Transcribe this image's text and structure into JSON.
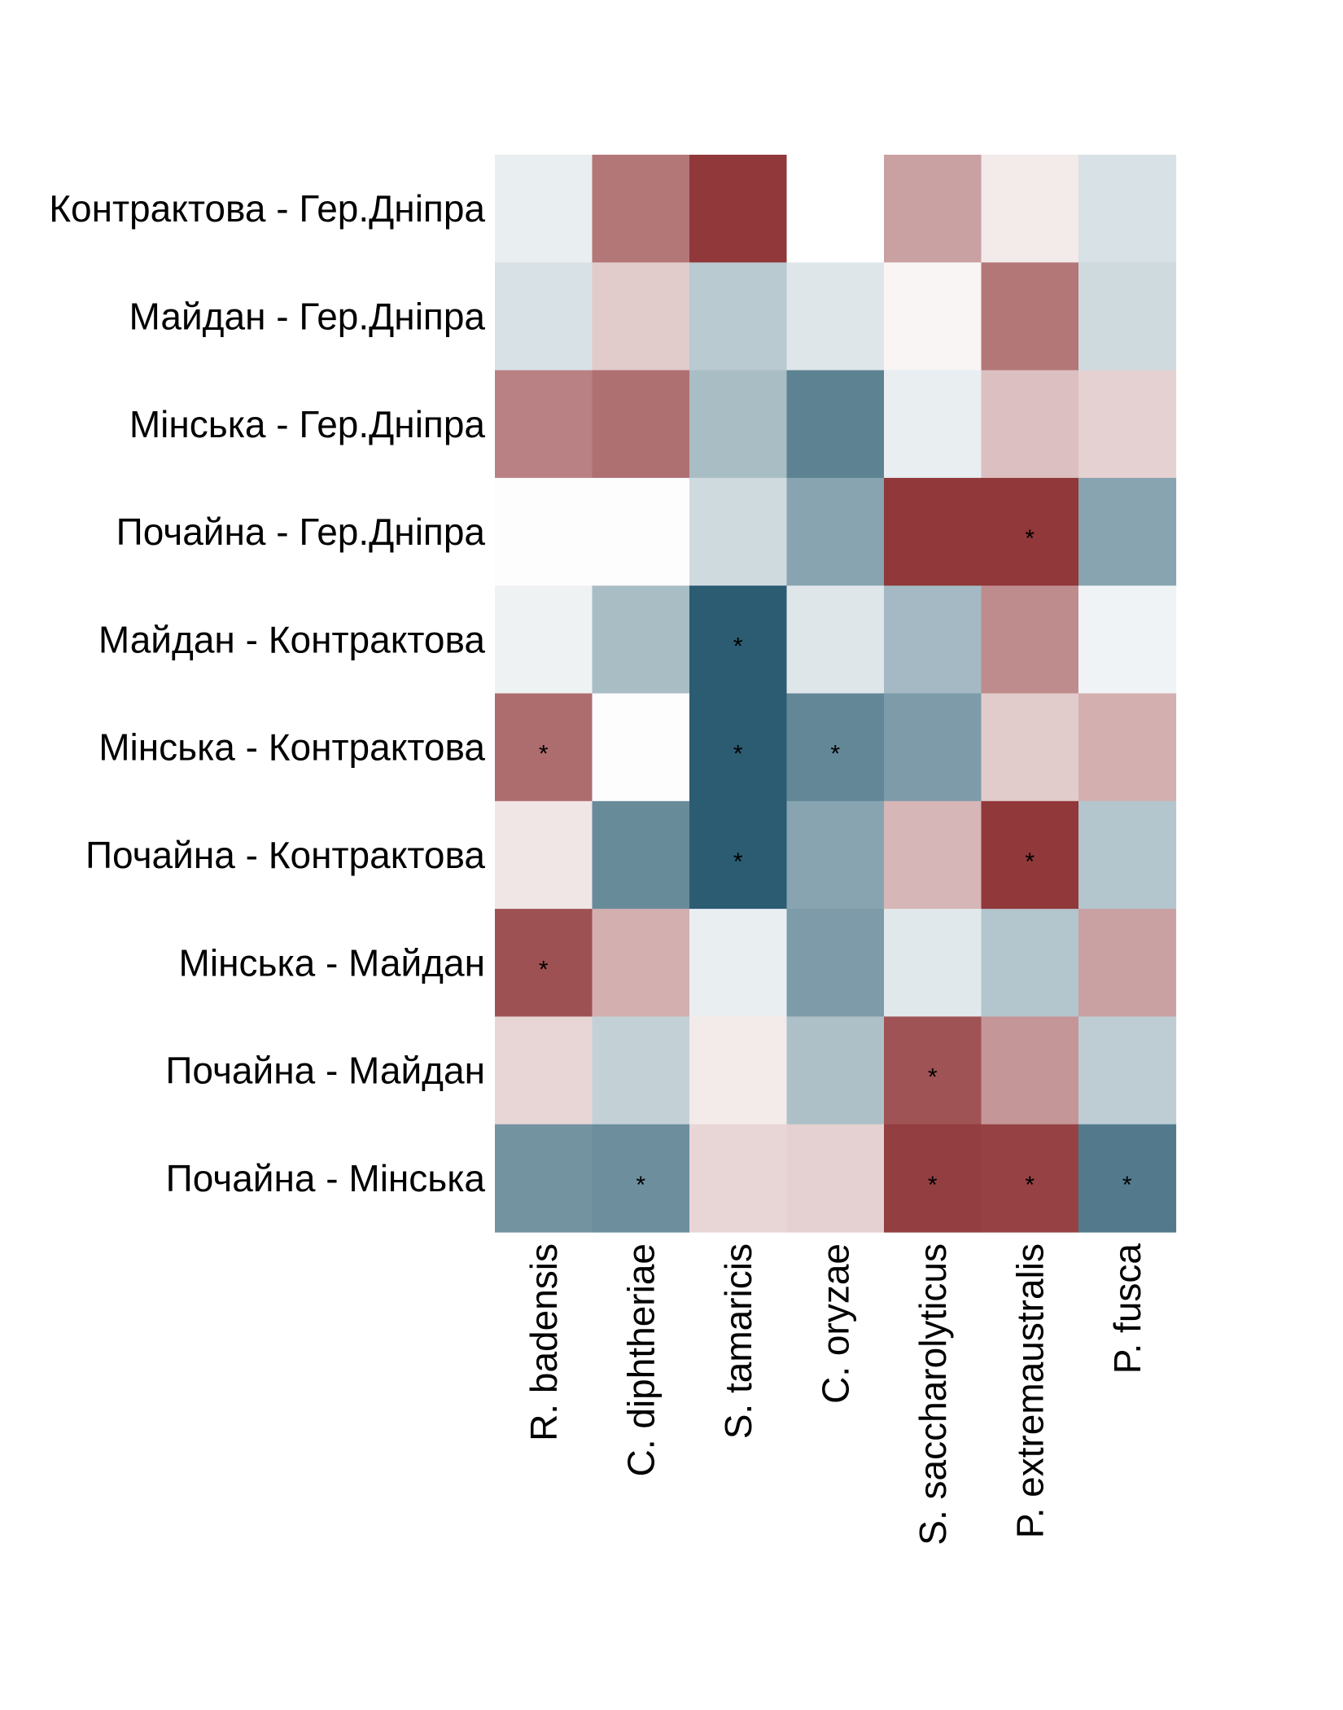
{
  "chart_data": {
    "type": "heatmap",
    "rows": [
      "Контрактова - Гер.Дніпра",
      "Майдан - Гер.Дніпра",
      "Мінська - Гер.Дніпра",
      "Почайна - Гер.Дніпра",
      "Майдан - Контрактова",
      "Мінська - Контрактова",
      "Почайна - Контрактова",
      "Мінська - Майдан",
      "Почайна - Майдан",
      "Почайна - Мінська"
    ],
    "columns": [
      "R. badensis",
      "C. diphtheriae",
      "S. tamaricis",
      "C. oryzae",
      "S. saccharolyticus",
      "P. extremaustralis",
      "P. fusca"
    ],
    "values": [
      [
        -0.1,
        0.65,
        0.95,
        0.0,
        0.45,
        0.1,
        -0.18
      ],
      [
        -0.18,
        0.25,
        -0.32,
        -0.15,
        0.05,
        0.65,
        -0.22
      ],
      [
        0.6,
        0.68,
        -0.4,
        -0.75,
        -0.1,
        0.3,
        0.22
      ],
      [
        0.01,
        0.01,
        -0.22,
        -0.55,
        0.95,
        0.95,
        -0.55
      ],
      [
        -0.08,
        -0.4,
        -0.98,
        -0.15,
        -0.42,
        0.55,
        -0.07
      ],
      [
        0.7,
        0.01,
        -0.98,
        -0.72,
        -0.6,
        0.25,
        0.38
      ],
      [
        0.12,
        -0.7,
        -0.98,
        -0.55,
        0.35,
        0.95,
        -0.35
      ],
      [
        0.83,
        0.38,
        -0.1,
        -0.6,
        -0.14,
        -0.35,
        0.45
      ],
      [
        0.2,
        -0.28,
        0.1,
        -0.38,
        0.82,
        0.5,
        -0.3
      ],
      [
        -0.65,
        -0.68,
        0.2,
        0.22,
        0.92,
        0.9,
        -0.8
      ]
    ],
    "significant": [
      [
        0,
        0,
        0,
        0,
        0,
        0,
        0
      ],
      [
        0,
        0,
        0,
        0,
        0,
        0,
        0
      ],
      [
        0,
        0,
        0,
        0,
        0,
        0,
        0
      ],
      [
        0,
        0,
        0,
        0,
        0,
        1,
        0
      ],
      [
        0,
        0,
        1,
        0,
        0,
        0,
        0
      ],
      [
        1,
        0,
        1,
        1,
        0,
        0,
        0
      ],
      [
        0,
        0,
        1,
        0,
        0,
        1,
        0
      ],
      [
        1,
        0,
        0,
        0,
        0,
        0,
        0
      ],
      [
        0,
        0,
        0,
        0,
        1,
        0,
        0
      ],
      [
        0,
        1,
        0,
        0,
        1,
        1,
        1
      ]
    ],
    "significance_marker": "*",
    "value_range": [
      -1,
      1
    ],
    "colors": {
      "low": "#27596f",
      "mid": "#ffffff",
      "high": "#8a2d30"
    },
    "legend": "none",
    "grid": false
  }
}
